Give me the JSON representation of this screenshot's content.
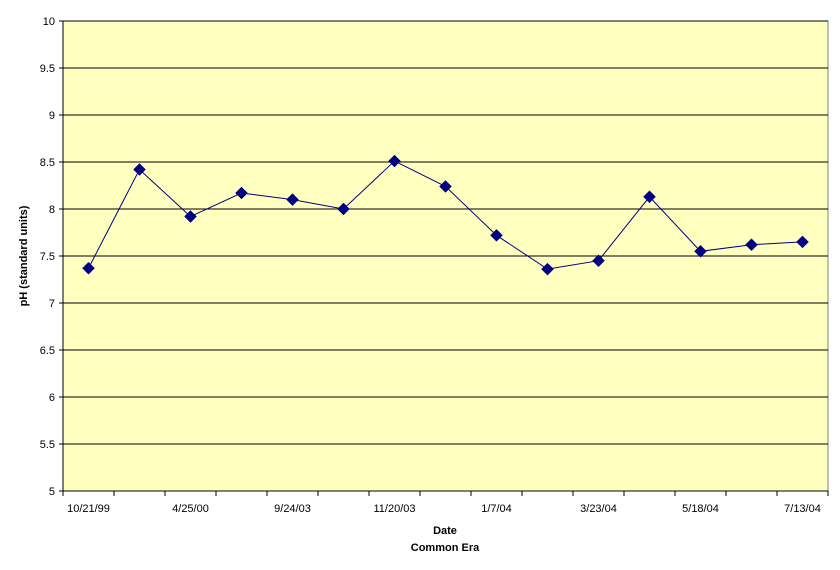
{
  "chart_data": {
    "type": "line",
    "title": "",
    "xlabel": "Date",
    "xlabel_sub": "Common Era",
    "ylabel": "pH (standard units)",
    "ylim": [
      5,
      10
    ],
    "yticks": [
      5,
      5.5,
      6,
      6.5,
      7,
      7.5,
      8,
      8.5,
      9,
      9.5,
      10
    ],
    "ytick_labels": [
      "5",
      "5.5",
      "6",
      "6.5",
      "7",
      "7.5",
      "8",
      "8.5",
      "9",
      "9.5",
      "10"
    ],
    "x_tick_labels": [
      "10/21/99",
      "",
      "4/25/00",
      "",
      "9/24/03",
      "",
      "11/20/03",
      "",
      "1/7/04",
      "",
      "3/23/04",
      "",
      "5/18/04",
      "",
      "7/13/04"
    ],
    "x": [
      "10/21/99",
      "",
      "4/25/00",
      "",
      "9/24/03",
      "",
      "11/20/03",
      "",
      "1/7/04",
      "",
      "3/23/04",
      "",
      "5/18/04",
      "",
      "7/13/04"
    ],
    "series": [
      {
        "name": "",
        "values": [
          7.37,
          8.42,
          7.92,
          8.17,
          8.1,
          8.0,
          8.51,
          8.24,
          7.72,
          7.36,
          7.45,
          8.13,
          7.55,
          7.62,
          7.65
        ]
      }
    ],
    "grid": true,
    "legend": "none",
    "colors": {
      "plot_background": "#FFFFC0",
      "line": "#000080",
      "marker": "#000080",
      "gridline": "#000000"
    }
  }
}
